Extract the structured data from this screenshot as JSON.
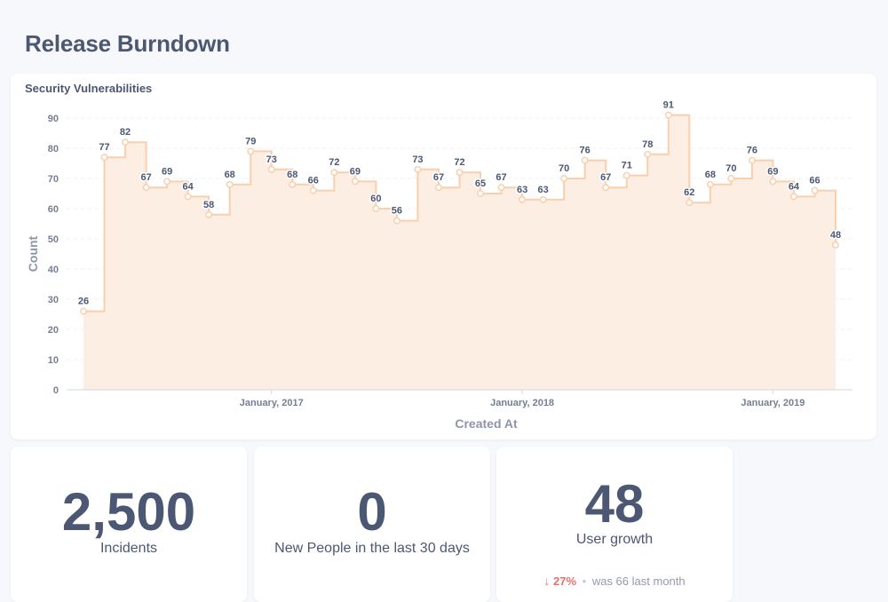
{
  "page": {
    "title": "Release Burndown"
  },
  "chart_card": {
    "title": "Security Vulnerabilities"
  },
  "chart_data": {
    "type": "area",
    "step": true,
    "title": "Security Vulnerabilities",
    "xlabel": "Created At",
    "ylabel": "Count",
    "ylim": [
      0,
      90
    ],
    "yticks": [
      0,
      10,
      20,
      30,
      40,
      50,
      60,
      70,
      80,
      90
    ],
    "xticks": [
      {
        "label": "January, 2017",
        "index": 9
      },
      {
        "label": "January, 2018",
        "index": 21
      },
      {
        "label": "January, 2019",
        "index": 33
      }
    ],
    "grid": true,
    "color": "#f9cfae",
    "values": [
      26,
      77,
      82,
      67,
      69,
      64,
      58,
      68,
      79,
      73,
      68,
      66,
      72,
      69,
      60,
      56,
      73,
      67,
      72,
      65,
      67,
      63,
      63,
      70,
      76,
      67,
      71,
      78,
      91,
      62,
      68,
      70,
      76,
      69,
      64,
      66,
      48
    ]
  },
  "stats": [
    {
      "value": "2,500",
      "label": "Incidents"
    },
    {
      "value": "0",
      "label": "New People in the last 30 days"
    },
    {
      "value": "48",
      "label": "User growth",
      "change": {
        "arrow": "↓",
        "percent": "27%",
        "separator": "•",
        "previous": "was 66",
        "period": "last month"
      }
    }
  ]
}
